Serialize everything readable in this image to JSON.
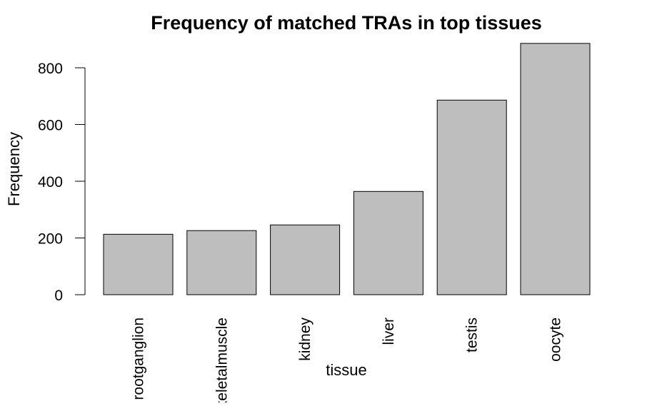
{
  "chart_data": {
    "type": "bar",
    "title": "Frequency of matched TRAs in top tissues",
    "xlabel": "tissue",
    "ylabel": "Frequency",
    "categories": [
      "rootganglion",
      "skeletalmuscle",
      "kidney",
      "liver",
      "testis",
      "oocyte"
    ],
    "values": [
      213,
      226,
      246,
      364,
      686,
      886
    ],
    "yticks": [
      0,
      200,
      400,
      600,
      800
    ],
    "ylim": [
      0,
      886
    ],
    "grid": false,
    "legend": "none",
    "colors": {
      "bar_fill": "#bebebe",
      "bar_stroke": "#000000"
    }
  }
}
